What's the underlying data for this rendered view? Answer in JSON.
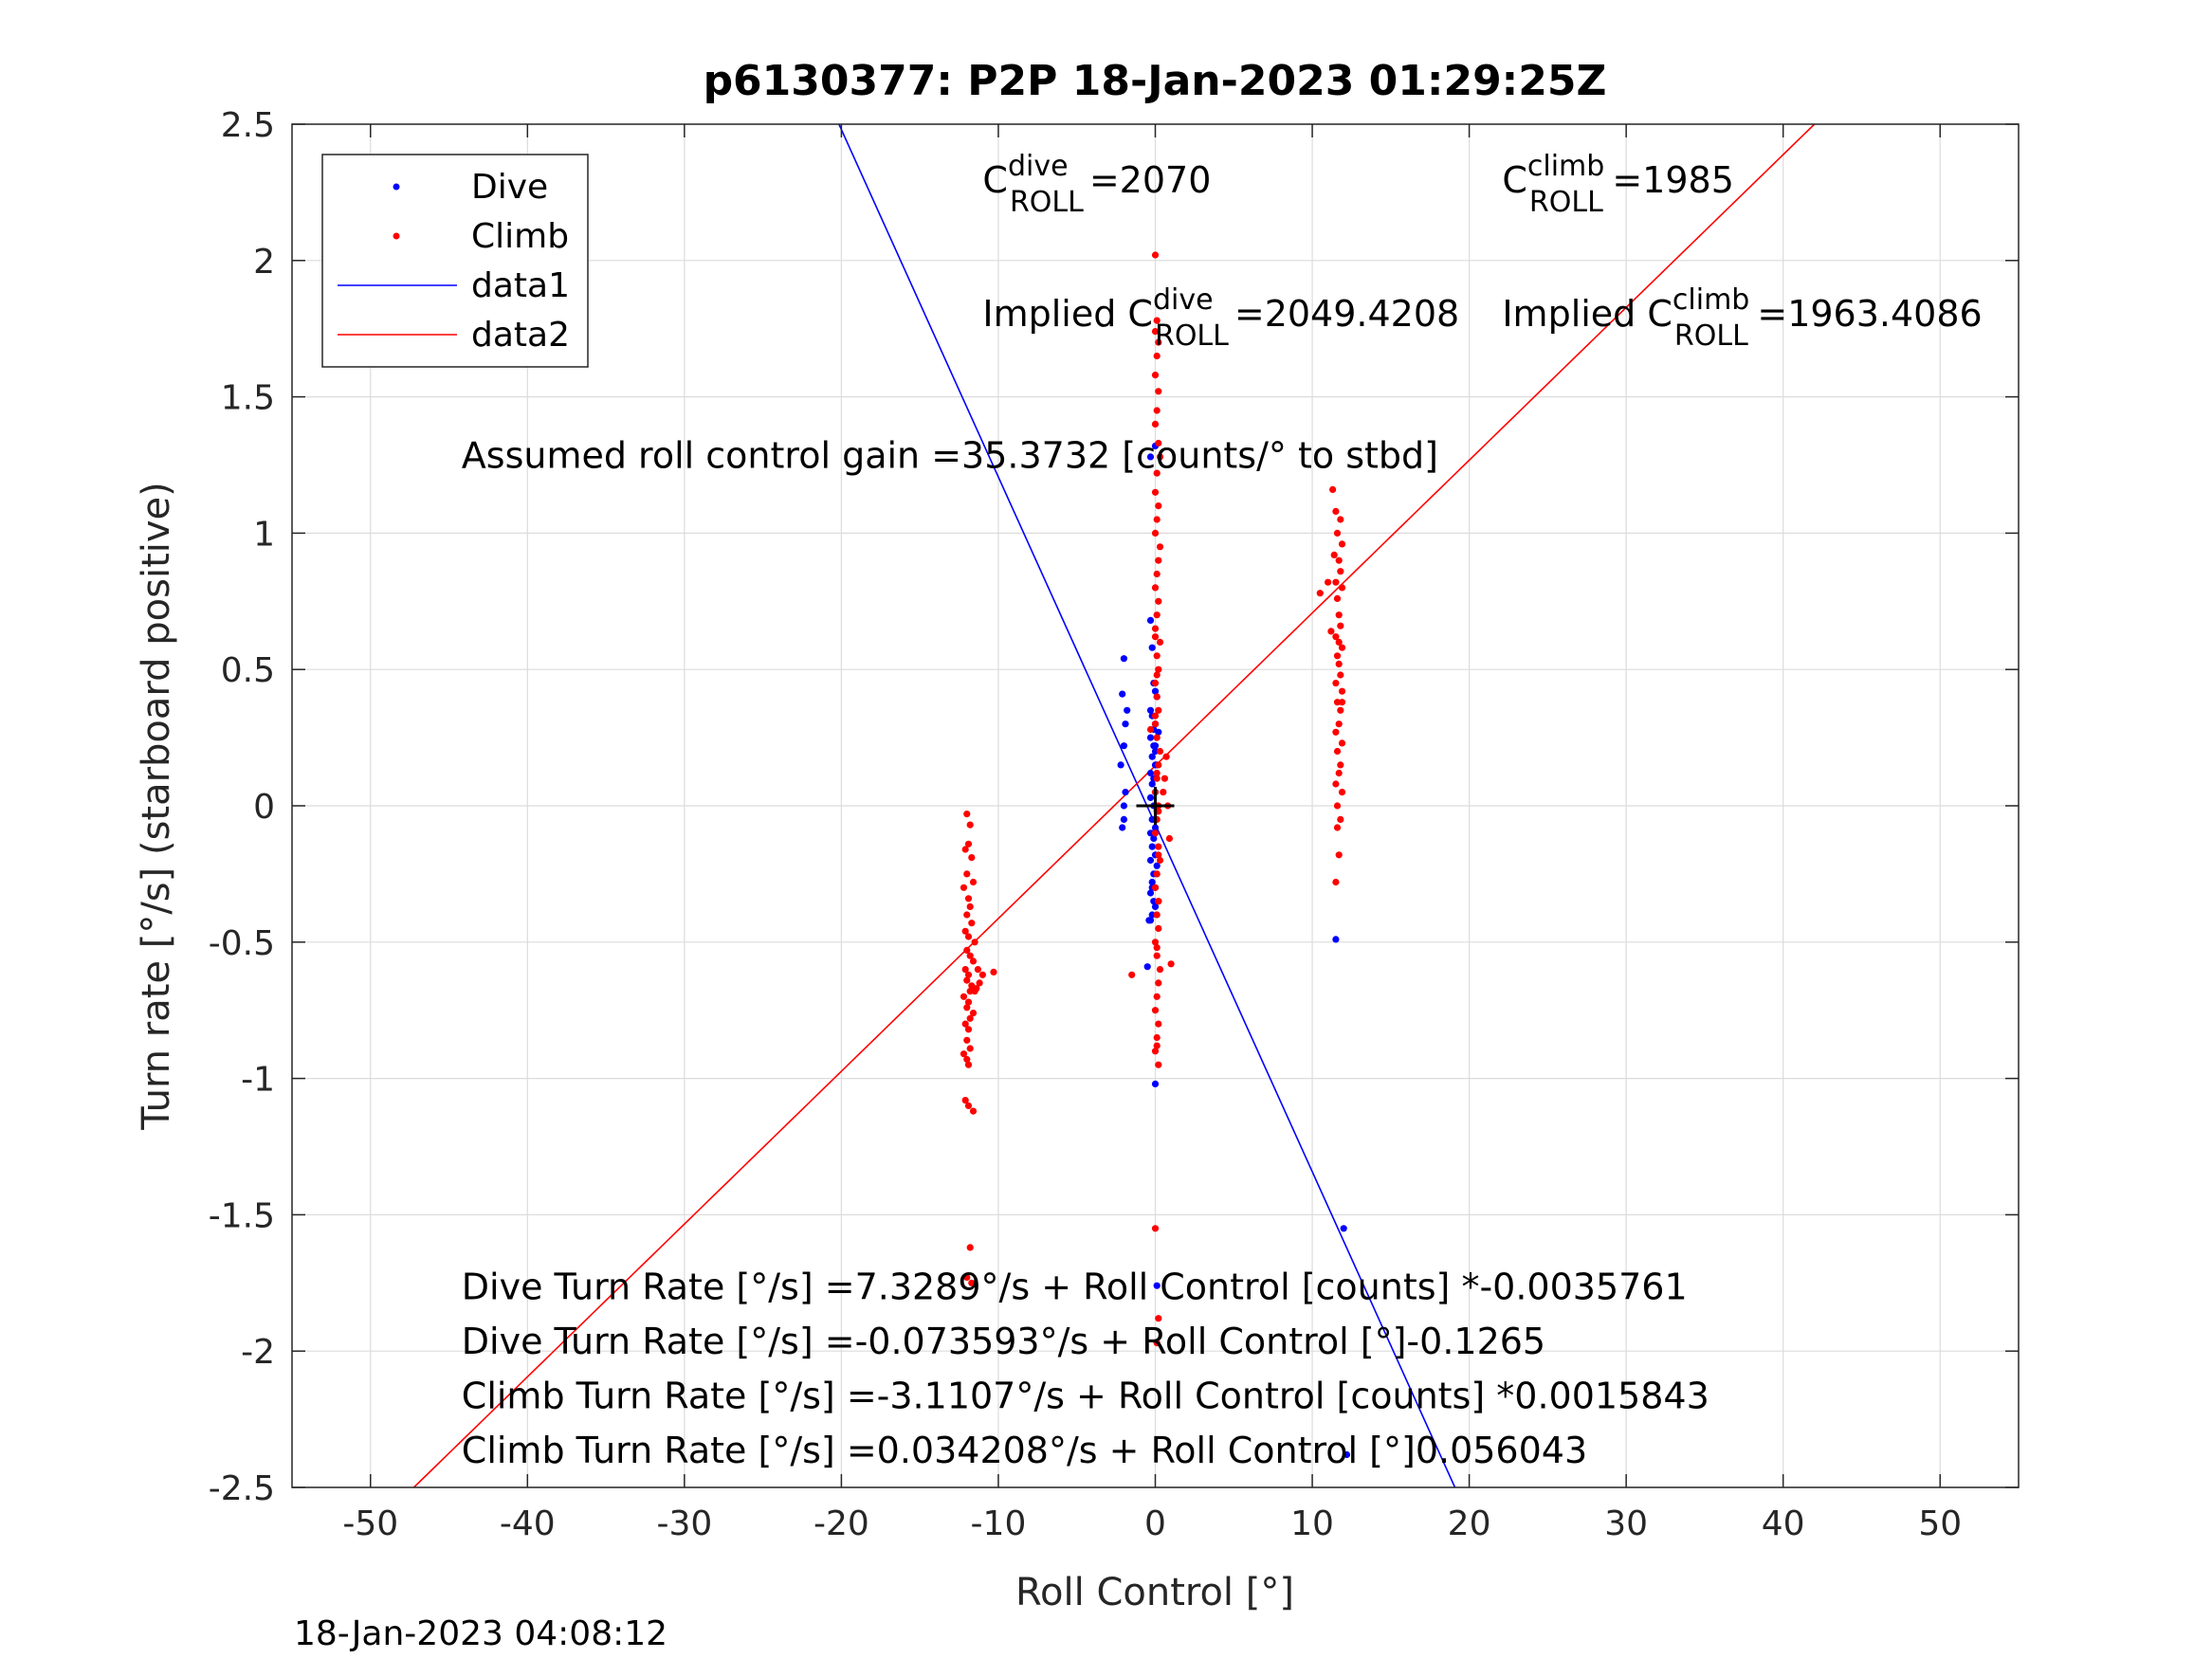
{
  "chart_data": {
    "type": "scatter",
    "title": "p6130377: P2P 18-Jan-2023 01:29:25Z",
    "xlabel": "Roll Control [°]",
    "ylabel": "Turn rate [°/s] (starboard positive)",
    "xlim": [
      -55,
      55
    ],
    "ylim": [
      -2.5,
      2.5
    ],
    "x_ticks": [
      -50,
      -40,
      -30,
      -20,
      -10,
      0,
      10,
      20,
      30,
      40,
      50
    ],
    "x_tick_labels": [
      "-50",
      "-40",
      "-30",
      "-20",
      "-10",
      "0",
      "10",
      "20",
      "30",
      "40",
      "50"
    ],
    "y_ticks": [
      -2.5,
      -2,
      -1.5,
      -1,
      -0.5,
      0,
      0.5,
      1,
      1.5,
      2,
      2.5
    ],
    "y_tick_labels": [
      "-2.5",
      "-2",
      "-1.5",
      "-1",
      "-0.5",
      "0",
      "0.5",
      "1",
      "1.5",
      "2",
      "2.5"
    ],
    "grid": true,
    "legend_position": "top-left",
    "timestamp": "18-Jan-2023 04:08:12",
    "series": [
      {
        "name": "Dive",
        "kind": "points",
        "color": "#0000ff",
        "x": [
          -0.3,
          -0.2,
          -0.1,
          0.0,
          0.1,
          -0.3,
          -0.2,
          0.0,
          -0.1,
          0.2,
          -0.3,
          -0.1,
          0.0,
          -0.2,
          0.1,
          -0.3,
          -0.1,
          -0.2,
          0.0,
          -0.3,
          -0.1,
          0.1,
          -0.2,
          0.0,
          -0.3,
          -0.1,
          -0.2,
          0.0,
          -0.3,
          0.1,
          -0.1,
          -0.2,
          0.0,
          -0.3,
          -0.1,
          0.0,
          -0.2,
          -0.3,
          -0.1,
          0.0,
          -0.2,
          -2.0,
          -2.1,
          -1.9,
          -2.0,
          -2.2,
          -1.9,
          -2.0,
          -2.1,
          -1.8,
          -2.0,
          -0.5,
          -0.4,
          0.0,
          -0.3,
          0.0,
          0.1,
          11.5,
          12.0,
          12.2,
          0.0
        ],
        "y": [
          0.68,
          0.58,
          0.45,
          0.42,
          0.4,
          0.35,
          0.33,
          0.3,
          0.28,
          0.27,
          0.25,
          0.22,
          0.2,
          0.18,
          0.15,
          0.12,
          0.1,
          0.08,
          0.05,
          0.03,
          0.0,
          -0.02,
          -0.05,
          -0.08,
          -0.1,
          -0.12,
          -0.15,
          -0.18,
          -0.2,
          -0.22,
          -0.25,
          -0.28,
          -0.3,
          -0.32,
          -0.35,
          -0.37,
          -0.4,
          -0.42,
          -0.1,
          0.22,
          -0.3,
          0.54,
          0.41,
          0.3,
          0.22,
          0.15,
          0.05,
          0.0,
          -0.08,
          0.35,
          -0.05,
          -0.59,
          -0.42,
          -1.02,
          1.28,
          1.32,
          -1.76,
          -0.49,
          -1.55,
          -2.38,
          0.15
        ]
      },
      {
        "name": "Climb",
        "kind": "points",
        "color": "#ff0000",
        "x": [
          -12.0,
          -11.8,
          -11.9,
          -12.1,
          -11.7,
          -12.0,
          -11.6,
          -12.2,
          -11.9,
          -11.8,
          -12.0,
          -11.7,
          -12.1,
          -11.9,
          -11.5,
          -12.0,
          -11.8,
          -11.6,
          -12.1,
          -11.9,
          -12.0,
          -11.7,
          -11.8,
          -12.2,
          -11.9,
          -12.0,
          -11.6,
          -11.8,
          -12.1,
          -11.9,
          -11.3,
          -11.0,
          -11.2,
          -11.4,
          -12.0,
          -11.8,
          -10.3,
          -12.0,
          -11.5,
          -12.1,
          -11.6,
          -11.9,
          -11.8,
          -12.0,
          -11.7,
          -11.9,
          -12.2,
          0.0,
          0.1,
          0.0,
          0.2,
          0.1,
          0.0,
          0.2,
          0.1,
          0.0,
          0.2,
          0.3,
          0.1,
          0.0,
          0.2,
          0.1,
          0.0,
          0.3,
          0.2,
          0.1,
          0.0,
          0.2,
          0.1,
          0.0,
          0.3,
          0.1,
          0.2,
          0.0,
          0.1,
          0.2,
          0.0,
          0.1,
          0.3,
          0.2,
          0.1,
          0.0,
          0.2,
          0.1,
          0.0,
          0.2,
          0.3,
          0.1,
          0.0,
          0.2,
          0.1,
          0.2,
          0.0,
          0.1,
          0.3,
          0.2,
          0.1,
          0.0,
          0.2,
          0.1,
          -1.5,
          1.0,
          0.8,
          0.6,
          0.5,
          0.9,
          -0.3,
          0.7,
          0.2,
          0.1,
          0.0,
          0.1,
          0.2,
          0.0,
          0.2,
          0.1,
          0.0,
          0.2,
          0.1,
          0.0,
          0.1,
          0.2,
          11.3,
          11.5,
          11.8,
          11.6,
          11.9,
          11.4,
          11.7,
          11.8,
          11.5,
          11.9,
          11.6,
          11.7,
          11.8,
          11.5,
          11.9,
          11.6,
          11.7,
          11.8,
          11.5,
          11.9,
          11.6,
          11.8,
          11.7,
          11.5,
          11.9,
          11.6,
          11.8,
          11.7,
          11.5,
          11.9,
          11.6,
          11.8,
          10.5,
          11.0,
          11.2,
          11.7,
          11.5,
          11.6,
          11.9,
          11.7
        ],
        "y": [
          -0.03,
          -0.07,
          -0.14,
          -0.16,
          -0.19,
          -0.25,
          -0.28,
          -0.3,
          -0.34,
          -0.37,
          -0.4,
          -0.43,
          -0.46,
          -0.48,
          -0.5,
          -0.53,
          -0.55,
          -0.57,
          -0.6,
          -0.62,
          -0.64,
          -0.66,
          -0.68,
          -0.7,
          -0.72,
          -0.74,
          -0.76,
          -0.78,
          -0.8,
          -0.82,
          -0.6,
          -0.62,
          -0.65,
          -0.67,
          -0.86,
          -0.89,
          -0.61,
          -0.93,
          -0.68,
          -1.08,
          -1.12,
          -1.1,
          -1.62,
          -1.73,
          -1.75,
          -0.95,
          -0.91,
          2.02,
          1.78,
          1.74,
          1.7,
          1.65,
          1.58,
          1.52,
          1.45,
          1.4,
          1.33,
          1.28,
          1.22,
          1.15,
          1.1,
          1.05,
          1.0,
          0.95,
          0.9,
          0.85,
          0.8,
          0.75,
          0.7,
          0.65,
          0.6,
          0.55,
          0.5,
          0.45,
          0.4,
          0.35,
          0.3,
          0.25,
          0.2,
          0.15,
          0.1,
          0.05,
          0.0,
          -0.05,
          -0.1,
          -0.15,
          -0.2,
          -0.25,
          -0.3,
          -0.35,
          -0.4,
          -0.45,
          -0.5,
          -0.55,
          -0.6,
          -0.65,
          -0.7,
          -0.75,
          -0.8,
          -0.85,
          -0.62,
          -0.58,
          0.0,
          0.1,
          0.05,
          -0.12,
          0.28,
          0.18,
          -0.35,
          -0.52,
          0.33,
          0.12,
          -0.02,
          -0.9,
          -0.95,
          -0.88,
          -1.55,
          -1.88,
          -1.97,
          0.62,
          0.48,
          -0.18,
          1.16,
          1.08,
          1.05,
          1.0,
          0.96,
          0.92,
          0.9,
          0.86,
          0.82,
          0.8,
          0.76,
          0.7,
          0.66,
          0.62,
          0.58,
          0.55,
          0.52,
          0.48,
          0.45,
          0.42,
          0.38,
          0.35,
          0.3,
          0.27,
          0.23,
          0.2,
          0.15,
          0.12,
          0.08,
          0.05,
          0.0,
          -0.05,
          0.78,
          0.82,
          0.64,
          -0.18,
          -0.28,
          -0.08,
          0.38,
          0.6
        ]
      },
      {
        "name": "data1",
        "kind": "line",
        "color": "#0000ff",
        "x": [
          -20.155,
          19.089
        ],
        "y": [
          2.5,
          -2.5
        ]
      },
      {
        "name": "data2",
        "kind": "line",
        "color": "#ff0000",
        "x": [
          -47.24,
          41.996
        ],
        "y": [
          -2.5,
          2.5
        ]
      }
    ],
    "crosshair": {
      "x": 0,
      "y": 0,
      "color": "#000000"
    },
    "annotations": [
      {
        "type": "coef",
        "main": "C",
        "sup": "dive",
        "sub": "ROLL",
        "value": " =2070",
        "x": -11,
        "y": 2.25
      },
      {
        "type": "coef",
        "main": "C",
        "sup": "climb",
        "sub": "ROLL",
        "value": " =1985",
        "x": 22.1,
        "y": 2.25
      },
      {
        "type": "coef",
        "main": "Implied C",
        "sup": "dive",
        "sub": "ROLL",
        "value": " =2049.4208",
        "x": -11,
        "y": 1.76
      },
      {
        "type": "coef",
        "main": "Implied C",
        "sup": "climb",
        "sub": "ROLL",
        "value": " =1963.4086",
        "x": 22.1,
        "y": 1.76
      },
      {
        "type": "text",
        "text": "Assumed roll control gain =35.3732 [counts/° to stbd]",
        "x": -44.2,
        "y": 1.24
      },
      {
        "type": "text",
        "text": "Dive Turn Rate [°/s] =7.3289°/s + Roll Control [counts] *-0.0035761",
        "x": -44.2,
        "y": -1.81
      },
      {
        "type": "text",
        "text": "Dive Turn Rate [°/s] =-0.073593°/s + Roll Control [°]-0.1265",
        "x": -44.2,
        "y": -2.01
      },
      {
        "type": "text",
        "text": "Climb Turn Rate [°/s] =-3.1107°/s + Roll Control [counts] *0.0015843",
        "x": -44.2,
        "y": -2.21
      },
      {
        "type": "text",
        "text": "Climb Turn Rate [°/s] =0.034208°/s + Roll Control [°]0.056043",
        "x": -44.2,
        "y": -2.41
      }
    ]
  }
}
